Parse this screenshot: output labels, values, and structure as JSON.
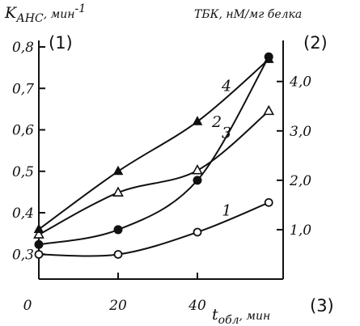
{
  "chart_data": {
    "type": "line",
    "x_label": "t_обл, мин",
    "x_label_main": "t",
    "x_label_sub": "обл",
    "x_label_unit": ", мин",
    "x_ticks": [
      "0",
      "20",
      "40"
    ],
    "xlim": [
      0,
      60
    ],
    "y_left": {
      "label": "K_АНС, мин-1",
      "label_main": "K",
      "label_sub": "АНС",
      "label_unit": ", мин",
      "label_sup": "-1",
      "ticks": [
        "0,3",
        "0,4",
        "0,5",
        "0,6",
        "0,7",
        "0,8"
      ],
      "ylim": [
        0.24,
        0.8
      ]
    },
    "y_right": {
      "label": "ТБК, нМ/мг белка",
      "ticks": [
        "1,0",
        "2,0",
        "3,0",
        "4,0"
      ],
      "ylim": [
        0,
        4.7
      ]
    },
    "panel_labels": [
      "(1)",
      "(2)",
      "(3)"
    ],
    "series": [
      {
        "name": "1",
        "axis": "right",
        "marker": "open-circle",
        "x": [
          0,
          20,
          40,
          58
        ],
        "values": [
          0.5,
          0.5,
          0.95,
          1.55
        ]
      },
      {
        "name": "2",
        "axis": "right",
        "marker": "filled-circle",
        "x": [
          0,
          20,
          40,
          58
        ],
        "values": [
          0.7,
          1.0,
          2.0,
          4.5
        ]
      },
      {
        "name": "3",
        "axis": "right",
        "marker": "open-triangle",
        "x": [
          0,
          20,
          40,
          58
        ],
        "values": [
          0.9,
          1.75,
          2.2,
          3.4
        ]
      },
      {
        "name": "4",
        "axis": "left",
        "marker": "filled-triangle",
        "x": [
          0,
          20,
          40,
          58
        ],
        "values": [
          0.36,
          0.5,
          0.62,
          0.77
        ]
      }
    ]
  }
}
